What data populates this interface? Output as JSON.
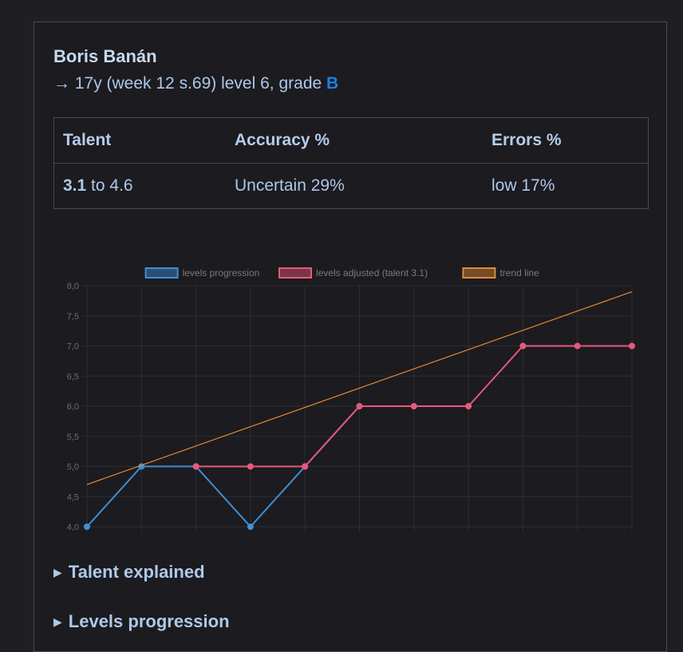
{
  "profile": {
    "name": "Boris Banán",
    "subtitle_prefix": "→ 17y (week 12 s.69) level 6, grade ",
    "grade": "B"
  },
  "stats_table": {
    "headers": [
      "Talent",
      "Accuracy %",
      "Errors %"
    ],
    "talent_low": "3.1",
    "talent_rest": " to 4.6",
    "accuracy": "Uncertain 29%",
    "errors": "low 17%"
  },
  "chart_data": {
    "type": "line",
    "x": [
      0,
      1,
      2,
      3,
      4,
      5,
      6,
      7,
      8,
      9,
      10
    ],
    "xlim": [
      0,
      10
    ],
    "ylim": [
      4.0,
      8.0
    ],
    "y_ticks": [
      "4,0",
      "4,5",
      "5,0",
      "5,5",
      "6,0",
      "6,5",
      "7,0",
      "7,5",
      "8,0"
    ],
    "x_ticks": [
      "0",
      "1",
      "2",
      "3",
      "4",
      "5",
      "6",
      "7",
      "8",
      "9",
      "10"
    ],
    "grid": true,
    "legend_position": "top-center",
    "series": [
      {
        "name": "levels progression",
        "color": "#3d8fd6",
        "values": [
          4,
          5,
          5,
          4,
          5,
          6,
          null,
          null,
          null,
          null,
          null
        ],
        "points": true
      },
      {
        "name": "levels adjusted (talent 3.1)",
        "color": "#e8587a",
        "values": [
          null,
          null,
          5,
          5,
          5,
          6,
          6,
          6,
          7,
          7,
          7
        ],
        "points": true
      },
      {
        "name": "trend line",
        "color": "#e08a38",
        "values": [
          4.7,
          null,
          null,
          null,
          null,
          null,
          null,
          null,
          null,
          null,
          7.9
        ],
        "points": false
      }
    ]
  },
  "sections": {
    "talent_explained": "Talent explained",
    "levels_progression": "Levels progression"
  }
}
